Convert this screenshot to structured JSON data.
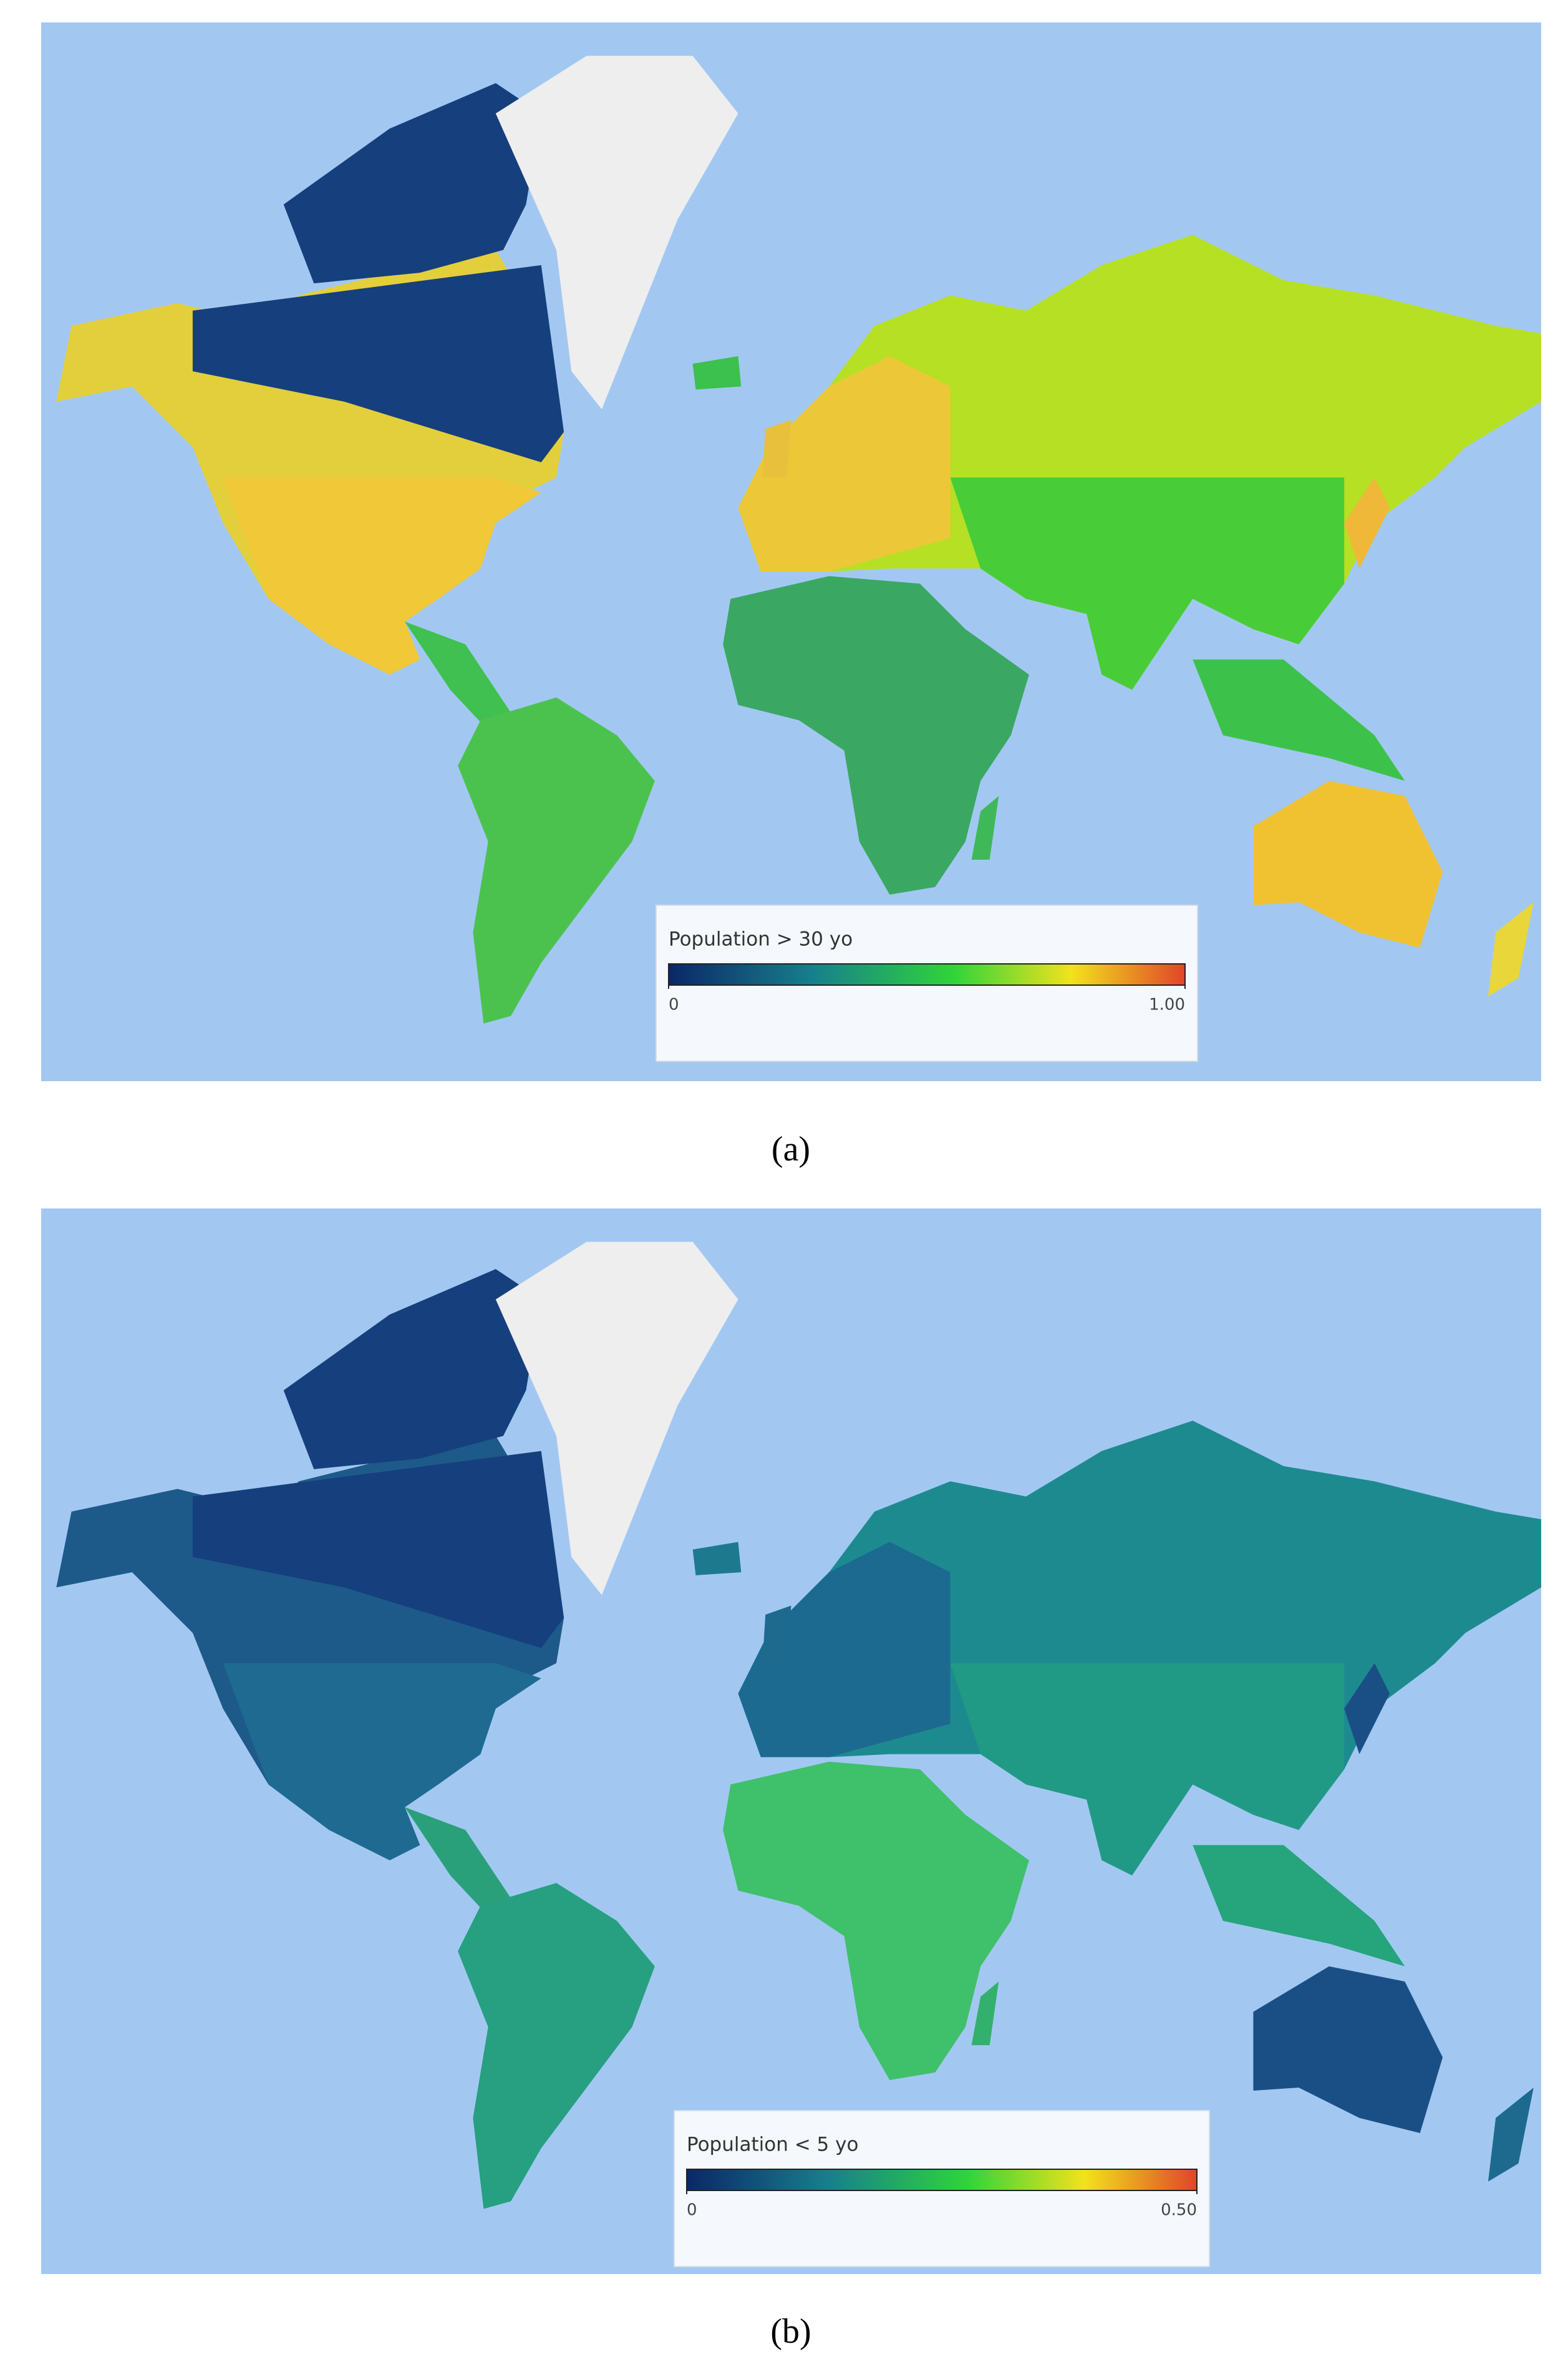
{
  "panels": [
    {
      "label": "(a)",
      "legend": {
        "title": "Population > 30 yo",
        "ticks": [
          0,
          {
            "value": 1,
            "label": "1.00"
          }
        ]
      }
    },
    {
      "label": "(b)",
      "legend": {
        "title": "Population < 5 yo",
        "ticks": [
          0,
          {
            "value": 0.5,
            "label": "0.50"
          }
        ]
      }
    }
  ]
}
